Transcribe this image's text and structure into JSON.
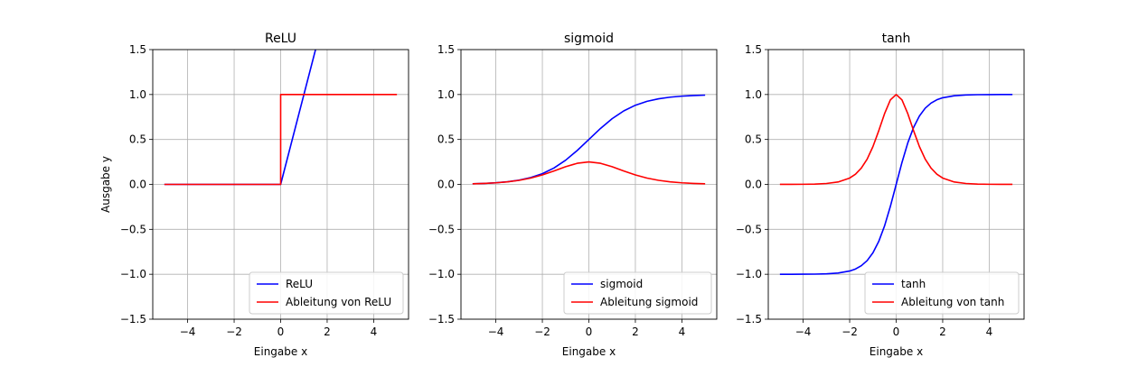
{
  "chart_data": [
    {
      "type": "line",
      "title": "ReLU",
      "xlabel": "Eingabe x",
      "ylabel": "Ausgabe y",
      "xlim": [
        -5.5,
        5.5
      ],
      "ylim": [
        -1.5,
        1.5
      ],
      "x_ticks": [
        -4,
        -2,
        0,
        2,
        4
      ],
      "x_tick_labels": [
        "−4",
        "−2",
        "0",
        "2",
        "4"
      ],
      "y_ticks": [
        -1.5,
        -1.0,
        -0.5,
        0.0,
        0.5,
        1.0,
        1.5
      ],
      "y_tick_labels": [
        "−1.5",
        "−1.0",
        "−0.5",
        "0.0",
        "0.5",
        "1.0",
        "1.5"
      ],
      "grid": true,
      "legend_position": "lower-right",
      "series": [
        {
          "name": "ReLU",
          "color": "#0000ff",
          "x": [
            -5,
            0,
            1.5
          ],
          "y": [
            0,
            0,
            1.5
          ]
        },
        {
          "name": "Ableitung von ReLU",
          "color": "#ff0000",
          "x": [
            -5,
            0,
            0,
            5
          ],
          "y": [
            0,
            0,
            1,
            1
          ]
        }
      ]
    },
    {
      "type": "line",
      "title": "sigmoid",
      "xlabel": "Eingabe x",
      "ylabel": "",
      "xlim": [
        -5.5,
        5.5
      ],
      "ylim": [
        -1.5,
        1.5
      ],
      "x_ticks": [
        -4,
        -2,
        0,
        2,
        4
      ],
      "x_tick_labels": [
        "−4",
        "−2",
        "0",
        "2",
        "4"
      ],
      "y_ticks": [
        -1.5,
        -1.0,
        -0.5,
        0.0,
        0.5,
        1.0,
        1.5
      ],
      "y_tick_labels": [
        "−1.5",
        "−1.0",
        "−0.5",
        "0.0",
        "0.5",
        "1.0",
        "1.5"
      ],
      "grid": true,
      "legend_position": "lower-right",
      "series": [
        {
          "name": "sigmoid",
          "color": "#0000ff",
          "x": [
            -5,
            -4.5,
            -4,
            -3.5,
            -3,
            -2.5,
            -2,
            -1.5,
            -1,
            -0.5,
            0,
            0.5,
            1,
            1.5,
            2,
            2.5,
            3,
            3.5,
            4,
            4.5,
            5
          ],
          "y": [
            0.0067,
            0.011,
            0.018,
            0.0293,
            0.0474,
            0.0759,
            0.1192,
            0.1824,
            0.2689,
            0.3775,
            0.5,
            0.6225,
            0.7311,
            0.8176,
            0.8808,
            0.9241,
            0.9526,
            0.9707,
            0.982,
            0.989,
            0.9933
          ]
        },
        {
          "name": "Ableitung sigmoid",
          "color": "#ff0000",
          "x": [
            -5,
            -4.5,
            -4,
            -3.5,
            -3,
            -2.5,
            -2,
            -1.5,
            -1,
            -0.5,
            0,
            0.5,
            1,
            1.5,
            2,
            2.5,
            3,
            3.5,
            4,
            4.5,
            5
          ],
          "y": [
            0.0066,
            0.0109,
            0.0177,
            0.0285,
            0.0452,
            0.0701,
            0.105,
            0.1491,
            0.1966,
            0.235,
            0.25,
            0.235,
            0.1966,
            0.1491,
            0.105,
            0.0701,
            0.0452,
            0.0285,
            0.0177,
            0.0109,
            0.0066
          ]
        }
      ]
    },
    {
      "type": "line",
      "title": "tanh",
      "xlabel": "Eingabe x",
      "ylabel": "",
      "xlim": [
        -5.5,
        5.5
      ],
      "ylim": [
        -1.5,
        1.5
      ],
      "x_ticks": [
        -4,
        -2,
        0,
        2,
        4
      ],
      "x_tick_labels": [
        "−4",
        "−2",
        "0",
        "2",
        "4"
      ],
      "y_ticks": [
        -1.5,
        -1.0,
        -0.5,
        0.0,
        0.5,
        1.0,
        1.5
      ],
      "y_tick_labels": [
        "−1.5",
        "−1.0",
        "−0.5",
        "0.0",
        "0.5",
        "1.0",
        "1.5"
      ],
      "grid": true,
      "legend_position": "lower-right",
      "series": [
        {
          "name": "tanh",
          "color": "#0000ff",
          "x": [
            -5,
            -4.5,
            -4,
            -3.5,
            -3,
            -2.5,
            -2,
            -1.75,
            -1.5,
            -1.25,
            -1,
            -0.75,
            -0.5,
            -0.25,
            0,
            0.25,
            0.5,
            0.75,
            1,
            1.25,
            1.5,
            1.75,
            2,
            2.5,
            3,
            3.5,
            4,
            4.5,
            5
          ],
          "y": [
            -0.9999,
            -0.9998,
            -0.9993,
            -0.9982,
            -0.9951,
            -0.9866,
            -0.964,
            -0.9414,
            -0.9051,
            -0.8483,
            -0.7616,
            -0.6351,
            -0.4621,
            -0.2449,
            0,
            0.2449,
            0.4621,
            0.6351,
            0.7616,
            0.8483,
            0.9051,
            0.9414,
            0.964,
            0.9866,
            0.9951,
            0.9982,
            0.9993,
            0.9998,
            0.9999
          ]
        },
        {
          "name": "Ableitung von tanh",
          "color": "#ff0000",
          "x": [
            -5,
            -4.5,
            -4,
            -3.5,
            -3,
            -2.5,
            -2,
            -1.75,
            -1.5,
            -1.25,
            -1,
            -0.75,
            -0.5,
            -0.25,
            0,
            0.25,
            0.5,
            0.75,
            1,
            1.25,
            1.5,
            1.75,
            2,
            2.5,
            3,
            3.5,
            4,
            4.5,
            5
          ],
          "y": [
            0.0002,
            0.0005,
            0.0013,
            0.0036,
            0.0099,
            0.0266,
            0.0707,
            0.1138,
            0.1807,
            0.2804,
            0.42,
            0.5966,
            0.7864,
            0.94,
            1.0,
            0.94,
            0.7864,
            0.5966,
            0.42,
            0.2804,
            0.1807,
            0.1138,
            0.0707,
            0.0266,
            0.0099,
            0.0036,
            0.0013,
            0.0005,
            0.0002
          ]
        }
      ]
    }
  ]
}
